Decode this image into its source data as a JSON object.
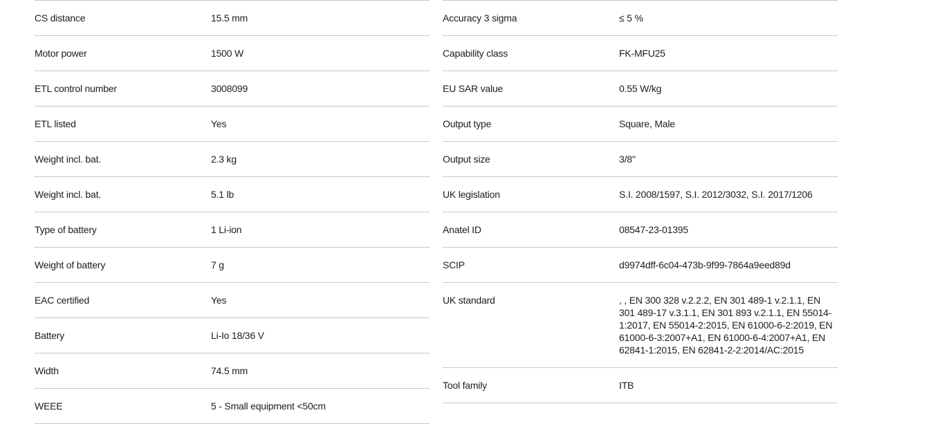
{
  "theme": {
    "background": "#ffffff",
    "text_color": "#1d1d1b",
    "divider_color": "#c8c8c8"
  },
  "spec_tables": {
    "left": {
      "rows": [
        {
          "label": "CS distance",
          "value": "15.5 mm"
        },
        {
          "label": "Motor power",
          "value": "1500 W"
        },
        {
          "label": "ETL control number",
          "value": "3008099"
        },
        {
          "label": "ETL listed",
          "value": "Yes"
        },
        {
          "label": "Weight incl. bat.",
          "value": "2.3 kg"
        },
        {
          "label": "Weight incl. bat.",
          "value": "5.1 lb"
        },
        {
          "label": "Type of battery",
          "value": "1 Li-ion"
        },
        {
          "label": "Weight of battery",
          "value": "7 g"
        },
        {
          "label": "EAC certified",
          "value": "Yes"
        },
        {
          "label": "Battery",
          "value": "Li-Io 18/36 V"
        },
        {
          "label": "Width",
          "value": "74.5 mm"
        },
        {
          "label": "WEEE",
          "value": "5 - Small equipment <50cm"
        }
      ]
    },
    "right": {
      "rows": [
        {
          "label": "Accuracy 3 sigma",
          "value": "≤ 5 %"
        },
        {
          "label": "Capability class",
          "value": "FK-MFU25"
        },
        {
          "label": "EU SAR value",
          "value": "0.55 W/kg"
        },
        {
          "label": "Output type",
          "value": "Square, Male"
        },
        {
          "label": "Output size",
          "value": "3/8\""
        },
        {
          "label": "UK legislation",
          "value": "S.I. 2008/1597, S.I. 2012/3032, S.I. 2017/1206"
        },
        {
          "label": "Anatel ID",
          "value": "08547-23-01395"
        },
        {
          "label": "SCIP",
          "value": "d9974dff-6c04-473b-9f99-7864a9eed89d"
        },
        {
          "label": "UK standard",
          "value": ", , EN 300 328 v.2.2.2, EN 301 489-1 v.2.1.1, EN 301 489-17 v.3.1.1, EN 301 893 v.2.1.1, EN 55014-1:2017, EN 55014-2:2015, EN 61000-6-2:2019, EN 61000-6-3:2007+A1, EN 61000-6-4:2007+A1, EN 62841-1:2015, EN 62841-2-2:2014/AC:2015"
        },
        {
          "label": "Tool family",
          "value": "ITB"
        }
      ]
    }
  }
}
